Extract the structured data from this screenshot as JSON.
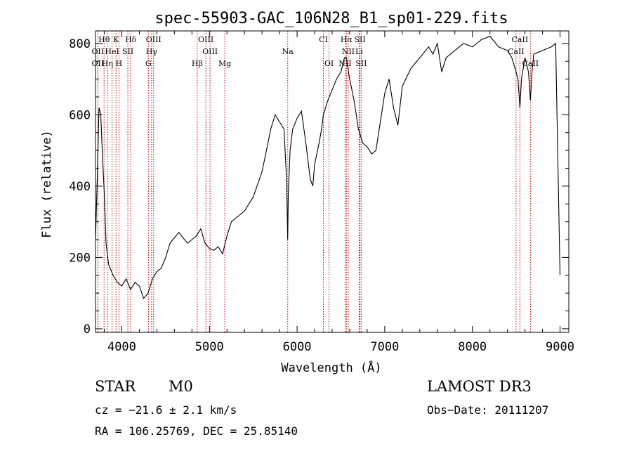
{
  "chart_data": {
    "type": "line",
    "title": "spec-55903-GAC_106N28_B1_sp01-229.fits",
    "xlabel": "Wavelength (Å)",
    "ylabel": "Flux (relative)",
    "xlim": [
      3700,
      9100
    ],
    "ylim": [
      -10,
      835
    ],
    "xticks": [
      4000,
      5000,
      6000,
      7000,
      8000,
      9000
    ],
    "yticks": [
      0,
      200,
      400,
      600,
      800
    ],
    "series": [
      {
        "name": "spectrum",
        "x": [
          3700,
          3720,
          3740,
          3760,
          3780,
          3800,
          3820,
          3850,
          3900,
          3950,
          4000,
          4050,
          4100,
          4150,
          4200,
          4250,
          4300,
          4350,
          4400,
          4450,
          4500,
          4550,
          4600,
          4650,
          4700,
          4750,
          4800,
          4850,
          4900,
          4950,
          5000,
          5050,
          5100,
          5150,
          5200,
          5250,
          5300,
          5400,
          5500,
          5600,
          5650,
          5700,
          5750,
          5800,
          5850,
          5880,
          5893,
          5900,
          5920,
          5950,
          6000,
          6050,
          6100,
          6150,
          6180,
          6200,
          6250,
          6280,
          6300,
          6350,
          6400,
          6450,
          6500,
          6540,
          6563,
          6580,
          6600,
          6650,
          6700,
          6750,
          6800,
          6850,
          6900,
          6950,
          7000,
          7050,
          7100,
          7150,
          7200,
          7300,
          7400,
          7500,
          7550,
          7600,
          7650,
          7700,
          7800,
          7900,
          8000,
          8100,
          8200,
          8300,
          8400,
          8450,
          8498,
          8520,
          8542,
          8560,
          8600,
          8640,
          8662,
          8680,
          8700,
          8800,
          8900,
          8950,
          9000
        ],
        "values": [
          250,
          420,
          620,
          600,
          480,
          380,
          240,
          180,
          150,
          130,
          120,
          140,
          110,
          130,
          120,
          85,
          100,
          140,
          160,
          170,
          200,
          240,
          255,
          270,
          255,
          240,
          250,
          260,
          280,
          240,
          225,
          220,
          230,
          210,
          260,
          300,
          310,
          330,
          370,
          440,
          500,
          560,
          600,
          580,
          560,
          420,
          250,
          380,
          500,
          560,
          590,
          610,
          520,
          420,
          400,
          460,
          520,
          560,
          600,
          640,
          670,
          700,
          720,
          760,
          760,
          730,
          700,
          640,
          560,
          520,
          510,
          490,
          500,
          580,
          660,
          700,
          620,
          570,
          680,
          730,
          760,
          790,
          770,
          800,
          720,
          760,
          780,
          800,
          790,
          810,
          820,
          790,
          780,
          760,
          720,
          700,
          620,
          700,
          760,
          720,
          640,
          720,
          770,
          780,
          790,
          800,
          150
        ]
      }
    ],
    "lines": [
      {
        "label": "Hθ",
        "wl": 3798,
        "row": 0
      },
      {
        "label": "K",
        "wl": 3934,
        "row": 0
      },
      {
        "label": "Hδ",
        "wl": 4102,
        "row": 0
      },
      {
        "label": "OIII",
        "wl": 4363,
        "row": 0
      },
      {
        "label": "OIII",
        "wl": 4959,
        "row": 0
      },
      {
        "label": "CI",
        "wl": 6300,
        "row": 0
      },
      {
        "label": "Hα",
        "wl": 6563,
        "row": 0
      },
      {
        "label": "SII",
        "wl": 6717,
        "row": 0
      },
      {
        "label": "CaII",
        "wl": 8542,
        "row": 0
      },
      {
        "label": "OII",
        "wl": 3727,
        "row": 1
      },
      {
        "label": "HeI",
        "wl": 3889,
        "row": 1
      },
      {
        "label": "SII",
        "wl": 4069,
        "row": 1
      },
      {
        "label": "Hγ",
        "wl": 4340,
        "row": 1
      },
      {
        "label": "OIII",
        "wl": 5007,
        "row": 1
      },
      {
        "label": "Na",
        "wl": 5893,
        "row": 1
      },
      {
        "label": "NII",
        "wl": 6584,
        "row": 1
      },
      {
        "label": "Li",
        "wl": 6708,
        "row": 1
      },
      {
        "label": "CaII",
        "wl": 8498,
        "row": 1
      },
      {
        "label": "OII",
        "wl": 3727,
        "row": 2
      },
      {
        "label": "Hη",
        "wl": 3835,
        "row": 2
      },
      {
        "label": "H",
        "wl": 3968,
        "row": 2
      },
      {
        "label": "G",
        "wl": 4304,
        "row": 2
      },
      {
        "label": "Hβ",
        "wl": 4861,
        "row": 2
      },
      {
        "label": "Mg",
        "wl": 5175,
        "row": 2
      },
      {
        "label": "OI",
        "wl": 6364,
        "row": 2
      },
      {
        "label": "NII",
        "wl": 6548,
        "row": 2
      },
      {
        "label": "SII",
        "wl": 6731,
        "row": 2
      },
      {
        "label": "CaII",
        "wl": 8662,
        "row": 2
      }
    ]
  },
  "info": {
    "class_label": "STAR",
    "subclass": "M0",
    "survey": "LAMOST DR3",
    "cz": "cz = −21.6 ± 2.1 km/s",
    "obs_date": "Obs−Date: 20111207",
    "radec": "RA = 106.25769, DEC =  25.85140"
  },
  "colors": {
    "line": "#000000",
    "marker": "#cc0000"
  }
}
